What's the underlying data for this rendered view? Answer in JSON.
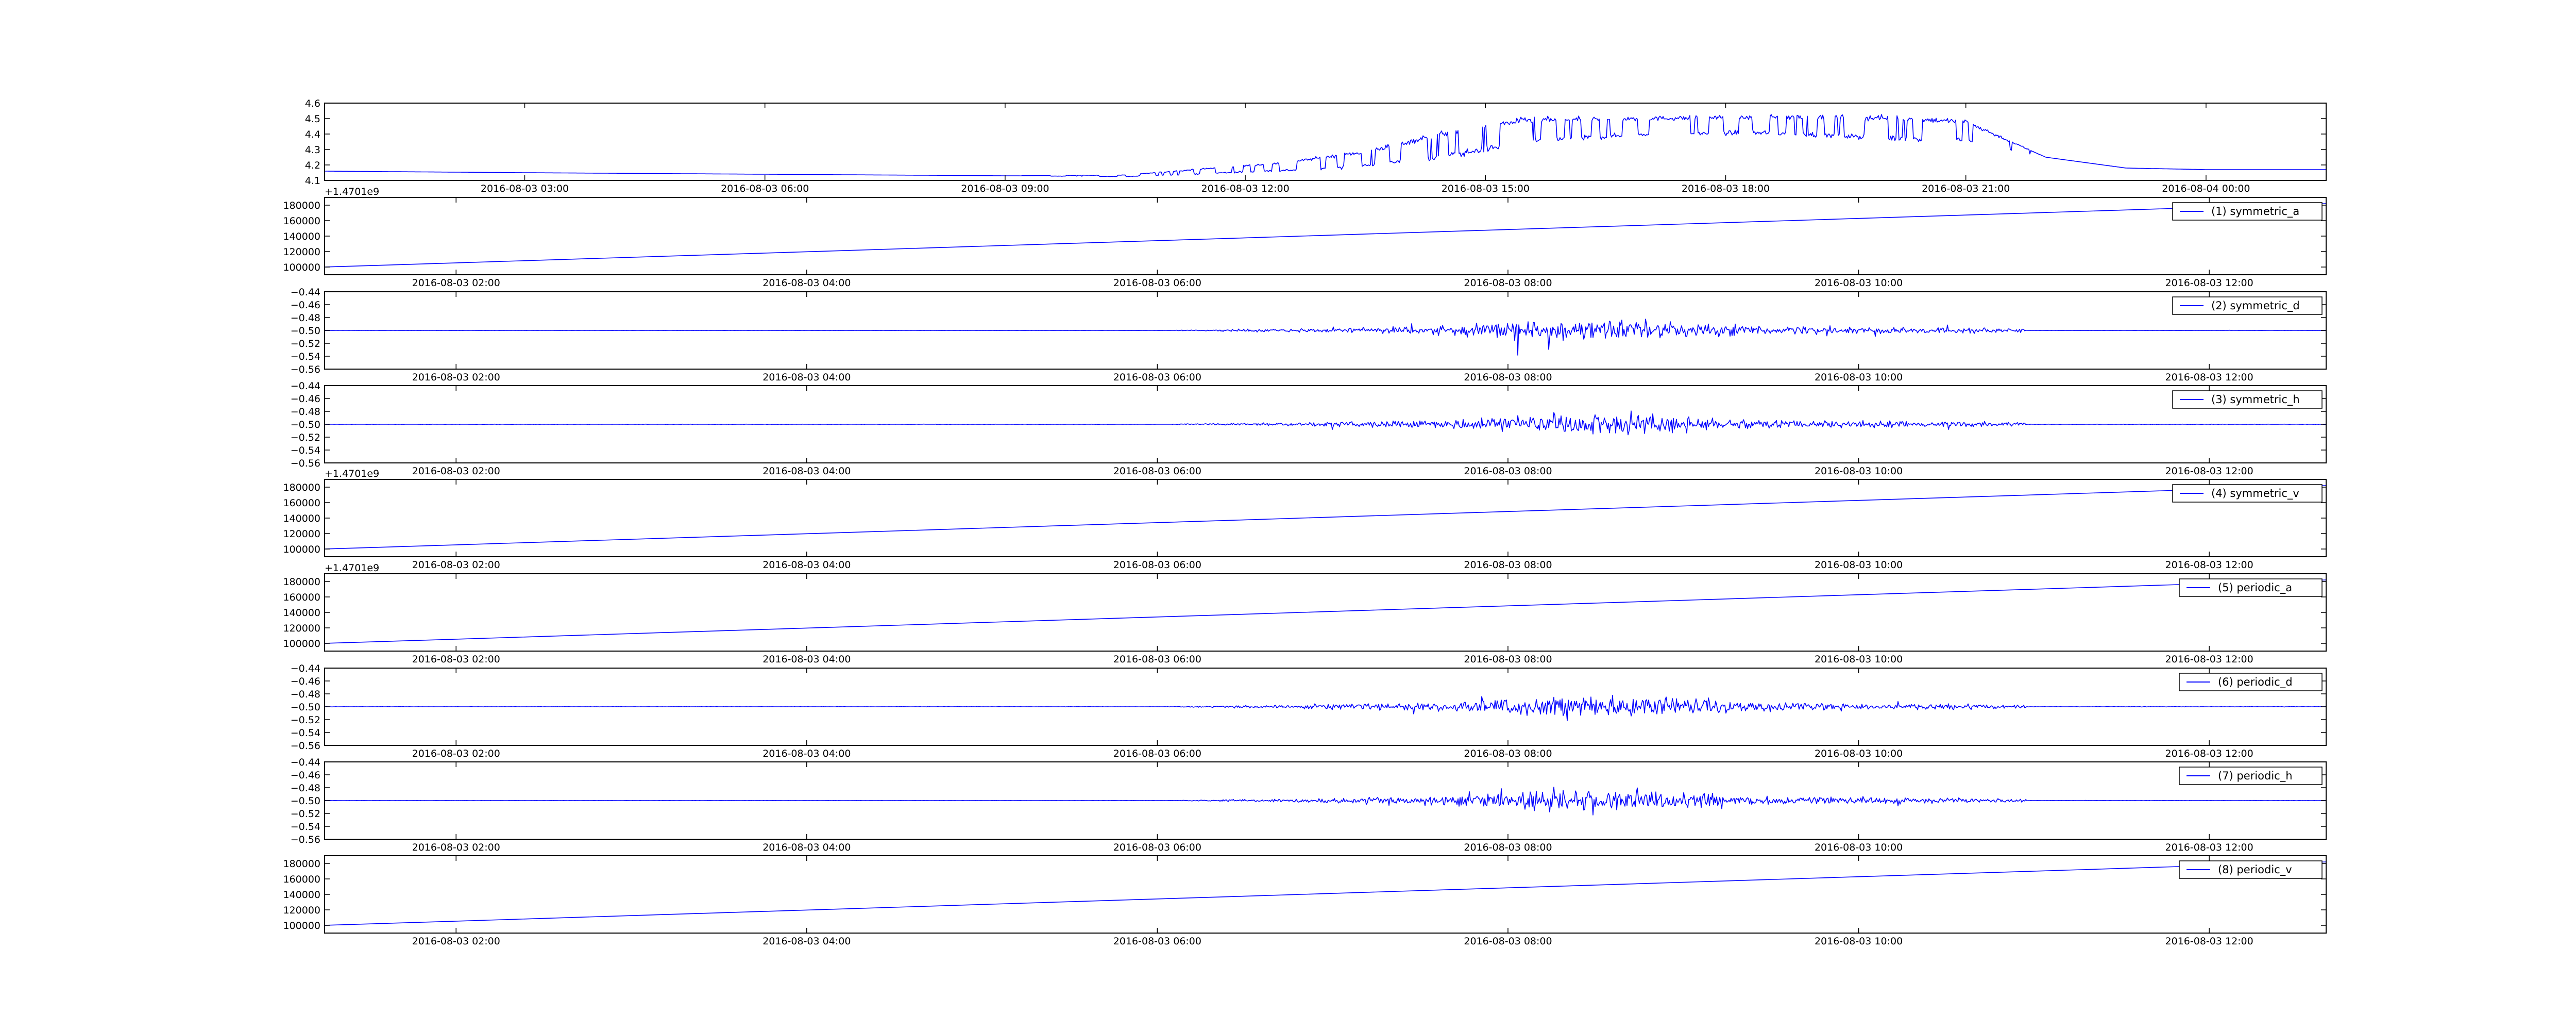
{
  "chart_data": [
    {
      "type": "line",
      "x_axis": "time",
      "xlim": [
        "2016-08-03 00:30",
        "2016-08-04 01:30"
      ],
      "xticks": [
        "2016-08-03 03:00",
        "2016-08-03 06:00",
        "2016-08-03 09:00",
        "2016-08-03 12:00",
        "2016-08-03 15:00",
        "2016-08-03 18:00",
        "2016-08-03 21:00",
        "2016-08-04 00:00"
      ],
      "ylim": [
        4.1,
        4.6
      ],
      "yticks": [
        "4.1",
        "4.2",
        "4.3",
        "4.4",
        "4.5",
        "4.6"
      ],
      "color": "#0000ff",
      "pattern": "battery",
      "series": [
        {
          "x": [
            "2016-08-03 00:30",
            "2016-08-03 03:00",
            "2016-08-03 06:00",
            "2016-08-03 09:00",
            "2016-08-03 10:30",
            "2016-08-03 11:30",
            "2016-08-03 12:30",
            "2016-08-03 13:30",
            "2016-08-03 14:30",
            "2016-08-03 15:30",
            "2016-08-03 17:00",
            "2016-08-03 18:30",
            "2016-08-03 20:00",
            "2016-08-03 21:00",
            "2016-08-03 22:00",
            "2016-08-03 23:00",
            "2016-08-04 00:00",
            "2016-08-04 01:30"
          ],
          "values": [
            4.16,
            4.15,
            4.14,
            4.13,
            4.13,
            4.16,
            4.19,
            4.24,
            4.33,
            4.42,
            4.45,
            4.46,
            4.44,
            4.42,
            4.25,
            4.18,
            4.17,
            4.17
          ],
          "noise_amplitude": [
            0,
            0,
            0,
            0,
            0.01,
            0.03,
            0.05,
            0.09,
            0.15,
            0.14,
            0.1,
            0.1,
            0.13,
            0.12,
            0,
            0,
            0,
            0
          ]
        }
      ]
    },
    {
      "type": "line",
      "x_axis": "time",
      "xlim": [
        "2016-08-03 01:15",
        "2016-08-03 12:40"
      ],
      "xticks": [
        "2016-08-03 02:00",
        "2016-08-03 04:00",
        "2016-08-03 06:00",
        "2016-08-03 08:00",
        "2016-08-03 10:00",
        "2016-08-03 12:00"
      ],
      "ylim": [
        90000,
        190000
      ],
      "yticks": [
        "100000",
        "120000",
        "140000",
        "160000",
        "180000"
      ],
      "y_offset_label": "+1.4701e9",
      "color": "#0000ff",
      "pattern": "ramp",
      "series": [
        {
          "name": "(1) symmetric_a",
          "values": [
            100000,
            182000
          ]
        }
      ]
    },
    {
      "type": "line",
      "x_axis": "time",
      "xlim": [
        "2016-08-03 01:15",
        "2016-08-03 12:40"
      ],
      "xticks": [
        "2016-08-03 02:00",
        "2016-08-03 04:00",
        "2016-08-03 06:00",
        "2016-08-03 08:00",
        "2016-08-03 10:00",
        "2016-08-03 12:00"
      ],
      "ylim": [
        -0.56,
        -0.44
      ],
      "yticks": [
        "−0.56",
        "−0.54",
        "−0.52",
        "−0.50",
        "−0.48",
        "−0.46",
        "−0.44"
      ],
      "color": "#0000ff",
      "pattern": "noise",
      "baseline": -0.5,
      "series": [
        {
          "name": "(2) symmetric_d"
        }
      ]
    },
    {
      "type": "line",
      "x_axis": "time",
      "xlim": [
        "2016-08-03 01:15",
        "2016-08-03 12:40"
      ],
      "xticks": [
        "2016-08-03 02:00",
        "2016-08-03 04:00",
        "2016-08-03 06:00",
        "2016-08-03 08:00",
        "2016-08-03 10:00",
        "2016-08-03 12:00"
      ],
      "ylim": [
        -0.56,
        -0.44
      ],
      "yticks": [
        "−0.56",
        "−0.54",
        "−0.52",
        "−0.50",
        "−0.48",
        "−0.46",
        "−0.44"
      ],
      "color": "#0000ff",
      "pattern": "noise",
      "baseline": -0.5,
      "series": [
        {
          "name": "(3) symmetric_h"
        }
      ]
    },
    {
      "type": "line",
      "x_axis": "time",
      "xlim": [
        "2016-08-03 01:15",
        "2016-08-03 12:40"
      ],
      "xticks": [
        "2016-08-03 02:00",
        "2016-08-03 04:00",
        "2016-08-03 06:00",
        "2016-08-03 08:00",
        "2016-08-03 10:00",
        "2016-08-03 12:00"
      ],
      "ylim": [
        90000,
        190000
      ],
      "yticks": [
        "100000",
        "120000",
        "140000",
        "160000",
        "180000"
      ],
      "y_offset_label": "+1.4701e9",
      "color": "#0000ff",
      "pattern": "ramp",
      "series": [
        {
          "name": "(4) symmetric_v",
          "values": [
            100000,
            182000
          ]
        }
      ]
    },
    {
      "type": "line",
      "x_axis": "time",
      "xlim": [
        "2016-08-03 01:15",
        "2016-08-03 12:40"
      ],
      "xticks": [
        "2016-08-03 02:00",
        "2016-08-03 04:00",
        "2016-08-03 06:00",
        "2016-08-03 08:00",
        "2016-08-03 10:00",
        "2016-08-03 12:00"
      ],
      "ylim": [
        90000,
        190000
      ],
      "yticks": [
        "100000",
        "120000",
        "140000",
        "160000",
        "180000"
      ],
      "y_offset_label": "+1.4701e9",
      "color": "#0000ff",
      "pattern": "ramp",
      "series": [
        {
          "name": "(5) periodic_a",
          "values": [
            100000,
            182000
          ]
        }
      ]
    },
    {
      "type": "line",
      "x_axis": "time",
      "xlim": [
        "2016-08-03 01:15",
        "2016-08-03 12:40"
      ],
      "xticks": [
        "2016-08-03 02:00",
        "2016-08-03 04:00",
        "2016-08-03 06:00",
        "2016-08-03 08:00",
        "2016-08-03 10:00",
        "2016-08-03 12:00"
      ],
      "ylim": [
        -0.56,
        -0.44
      ],
      "yticks": [
        "−0.56",
        "−0.54",
        "−0.52",
        "−0.50",
        "−0.48",
        "−0.46",
        "−0.44"
      ],
      "color": "#0000ff",
      "pattern": "noise",
      "baseline": -0.5,
      "series": [
        {
          "name": "(6) periodic_d"
        }
      ]
    },
    {
      "type": "line",
      "x_axis": "time",
      "xlim": [
        "2016-08-03 01:15",
        "2016-08-03 12:40"
      ],
      "xticks": [
        "2016-08-03 02:00",
        "2016-08-03 04:00",
        "2016-08-03 06:00",
        "2016-08-03 08:00",
        "2016-08-03 10:00",
        "2016-08-03 12:00"
      ],
      "ylim": [
        -0.56,
        -0.44
      ],
      "yticks": [
        "−0.56",
        "−0.54",
        "−0.52",
        "−0.50",
        "−0.48",
        "−0.46",
        "−0.44"
      ],
      "color": "#0000ff",
      "pattern": "noise",
      "baseline": -0.5,
      "series": [
        {
          "name": "(7) periodic_h"
        }
      ]
    },
    {
      "type": "line",
      "x_axis": "time",
      "xlim": [
        "2016-08-03 01:15",
        "2016-08-03 12:40"
      ],
      "xticks": [
        "2016-08-03 02:00",
        "2016-08-03 04:00",
        "2016-08-03 06:00",
        "2016-08-03 08:00",
        "2016-08-03 10:00",
        "2016-08-03 12:00"
      ],
      "ylim": [
        90000,
        190000
      ],
      "yticks": [
        "100000",
        "120000",
        "140000",
        "160000",
        "180000"
      ],
      "color": "#0000ff",
      "pattern": "ramp",
      "series": [
        {
          "name": "(8) periodic_v",
          "values": [
            100000,
            182000
          ]
        }
      ]
    }
  ]
}
